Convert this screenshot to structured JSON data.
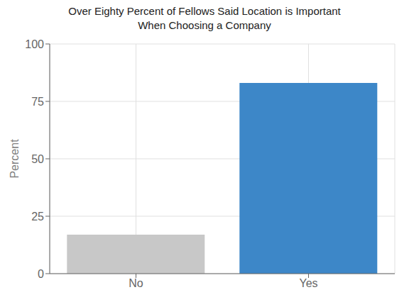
{
  "chart_data": {
    "type": "bar",
    "title": "Over Eighty Percent of Fellows Said Location is Important\nWhen Choosing a Company",
    "ylabel": "Percent",
    "categories": [
      "No",
      "Yes"
    ],
    "values": [
      17,
      83
    ],
    "colors": [
      "#c8c8c8",
      "#3d87c8"
    ],
    "ylim": [
      0,
      100
    ],
    "yticks": [
      0,
      25,
      50,
      75,
      100
    ],
    "grid": true
  }
}
